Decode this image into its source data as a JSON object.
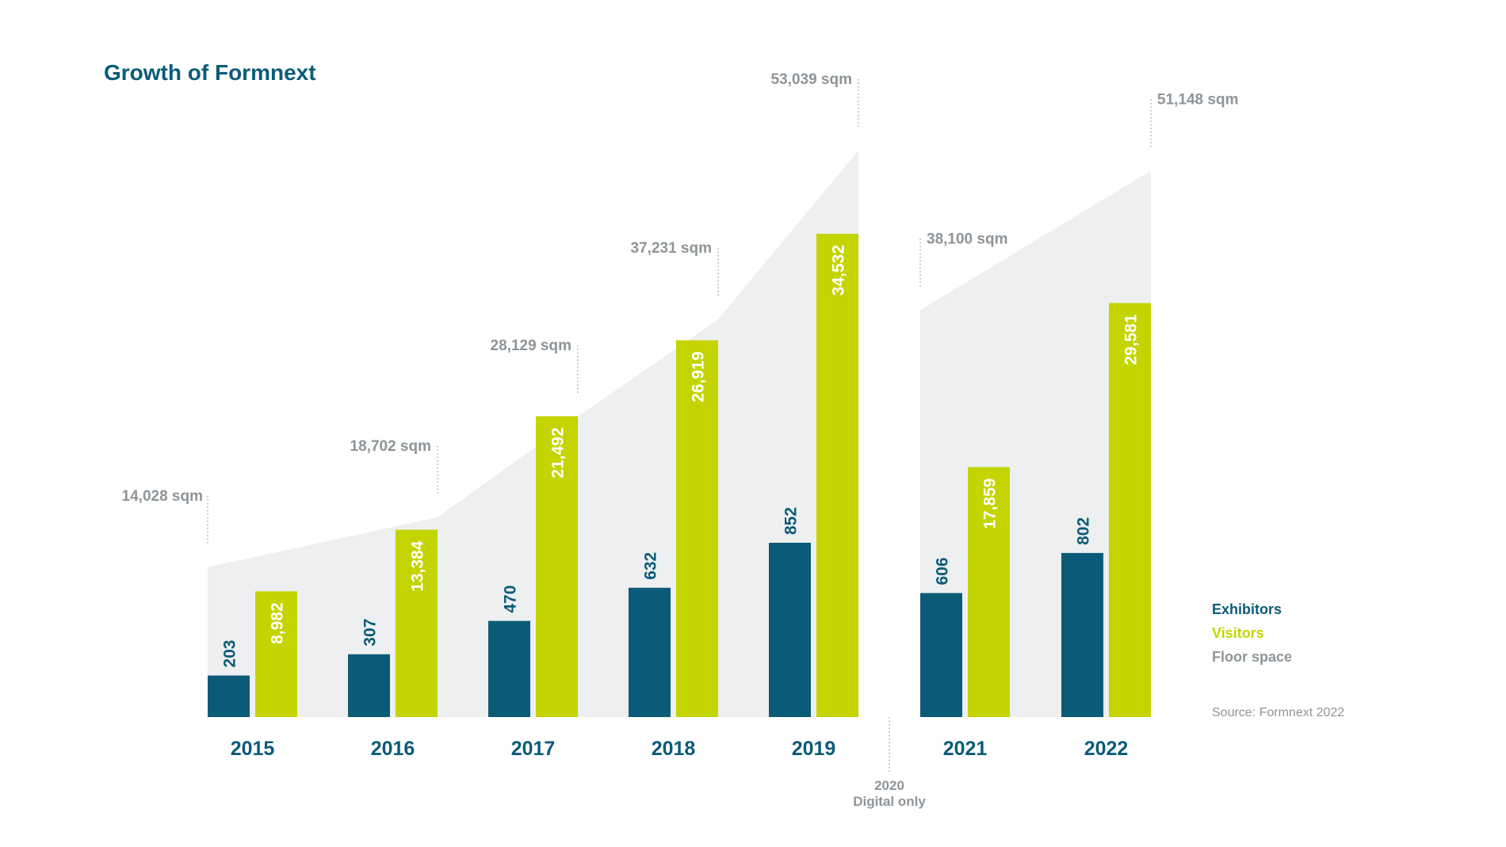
{
  "chart_data": {
    "type": "bar",
    "title": "Growth of Formnext",
    "categories": [
      "2015",
      "2016",
      "2017",
      "2018",
      "2019",
      "2021",
      "2022"
    ],
    "series": [
      {
        "name": "Exhibitors",
        "values": [
          203,
          307,
          470,
          632,
          852,
          606,
          802
        ],
        "labels": [
          "203",
          "307",
          "470",
          "632",
          "852",
          "606",
          "802"
        ],
        "color": "#0b5b78"
      },
      {
        "name": "Visitors",
        "values": [
          8982,
          13384,
          21492,
          26919,
          34532,
          17859,
          29581
        ],
        "labels": [
          "8,982",
          "13,384",
          "21,492",
          "26,919",
          "34,532",
          "17,859",
          "29,581"
        ],
        "color": "#c3d400"
      }
    ],
    "floor_space": {
      "name": "Floor space",
      "values": [
        14028,
        18702,
        28129,
        37231,
        53039,
        38100,
        51148
      ],
      "labels": [
        "14,028 sqm",
        "18,702 sqm",
        "28,129 sqm",
        "37,231 sqm",
        "53,039 sqm",
        "38,100 sqm",
        "51,148 sqm"
      ],
      "color": "#eeeff0",
      "label_color": "#8e9498"
    },
    "gap_note": [
      "2020",
      "Digital only"
    ],
    "legend": {
      "position": "right",
      "items": [
        {
          "label": "Exhibitors",
          "color": "#0b5b78"
        },
        {
          "label": "Visitors",
          "color": "#c3d400"
        },
        {
          "label": "Floor space",
          "color": "#8e9498"
        }
      ]
    },
    "source": "Source: Formnext 2022",
    "grid": false
  }
}
